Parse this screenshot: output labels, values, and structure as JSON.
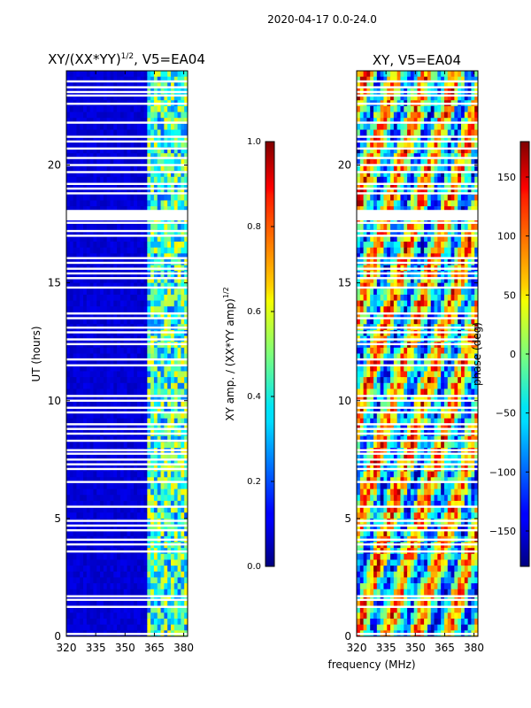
{
  "figure": {
    "suptitle": "2020-04-17 0.0-24.0",
    "xlabel_common": "frequency (MHz)"
  },
  "chart_data": [
    {
      "type": "heatmap",
      "title_main": "XY/(XX*YY)",
      "title_sup": "1/2",
      "title_tail": ", V5=EA04",
      "xlabel": "",
      "ylabel": "UT (hours)",
      "xlim": [
        320,
        382
      ],
      "ylim": [
        0,
        24
      ],
      "xticks": [
        320,
        335,
        350,
        365,
        380
      ],
      "yticks": [
        0,
        5,
        10,
        15,
        20
      ],
      "bright_band_start_mhz": 362,
      "colorbar": {
        "label_main": "XY amp. / (XX*YY amp)",
        "label_sup": "1/2",
        "range": [
          0.0,
          1.0
        ],
        "ticks": [
          "0.0",
          "0.2",
          "0.4",
          "0.6",
          "0.8",
          "1.0"
        ],
        "colormap": "jet"
      }
    },
    {
      "type": "heatmap",
      "title": "XY, V5=EA04",
      "xlabel": "",
      "ylabel": "",
      "xlim": [
        320,
        382
      ],
      "ylim": [
        0,
        24
      ],
      "xticks": [
        320,
        335,
        350,
        365,
        380
      ],
      "yticks": [
        0,
        5,
        10,
        15,
        20
      ],
      "colorbar": {
        "label": "phase (deg)",
        "range": [
          -180,
          180
        ],
        "ticks": [
          "150",
          "100",
          "50",
          "0",
          "−50",
          "−100",
          "−150"
        ],
        "tick_values": [
          150,
          100,
          50,
          0,
          -50,
          -100,
          -150
        ],
        "colormap": "jet"
      }
    }
  ],
  "flagged_hours": [
    0.1,
    1.25,
    1.55,
    1.7,
    3.6,
    3.9,
    4.1,
    4.5,
    4.7,
    4.9,
    5.5,
    6.55,
    7.1,
    7.3,
    7.5,
    7.75,
    7.9,
    8.3,
    8.6,
    8.8,
    9.0,
    9.5,
    9.7,
    10.0,
    10.2,
    11.5,
    11.75,
    12.4,
    12.6,
    12.9,
    13.1,
    13.5,
    13.7,
    14.8,
    15.2,
    15.4,
    15.6,
    15.85,
    16.05,
    17.0,
    17.2,
    17.55,
    17.75,
    17.9,
    18.05,
    18.8,
    19.0,
    19.2,
    19.7,
    20.0,
    20.3,
    20.7,
    21.0,
    21.2,
    21.8,
    22.6,
    22.95,
    23.1,
    23.3,
    23.55
  ]
}
